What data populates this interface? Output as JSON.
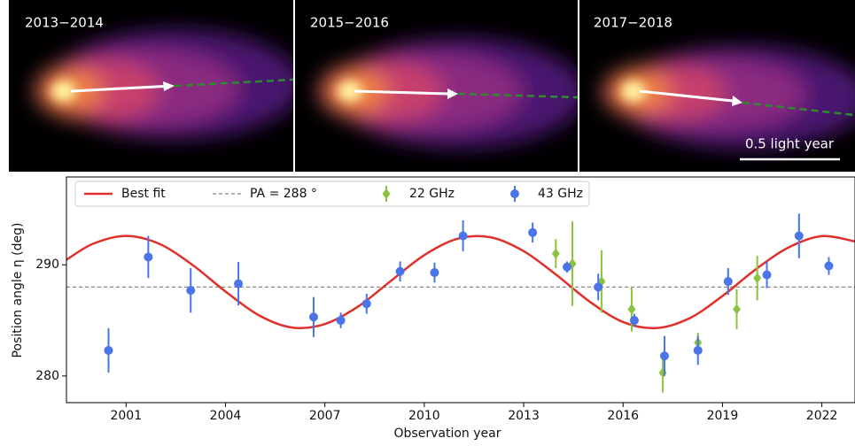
{
  "panels": [
    {
      "label": "2013−2014"
    },
    {
      "label": "2015−2016"
    },
    {
      "label": "2017−2018"
    }
  ],
  "scale_bar": "0.5 light year",
  "chart_data": {
    "type": "scatter",
    "xlabel": "Observation year",
    "ylabel": "Position angle η (deg)",
    "xlim": [
      1999.2,
      2023.0
    ],
    "ylim": [
      277.6,
      297.9
    ],
    "xticks": [
      2001,
      2004,
      2007,
      2010,
      2013,
      2016,
      2019,
      2022
    ],
    "yticks": [
      280,
      290
    ],
    "legend": "upper left",
    "reference_line": {
      "value": 288,
      "label": "PA = 288 °",
      "color": "#888888"
    },
    "series": [
      {
        "name": "Best fit",
        "type": "line",
        "color": "#e0302a",
        "x": [
          1999.2,
          2000,
          2001,
          2002,
          2003,
          2004,
          2005,
          2006,
          2007,
          2008,
          2009,
          2010,
          2011,
          2012,
          2013,
          2014,
          2015,
          2016,
          2017,
          2018,
          2019,
          2020,
          2021,
          2022,
          2023
        ],
        "values": [
          290.45,
          291.89,
          292.6,
          291.89,
          290.0,
          287.6,
          285.47,
          284.36,
          284.67,
          286.24,
          288.57,
          290.87,
          292.34,
          292.48,
          291.23,
          289.06,
          286.67,
          284.85,
          284.31,
          285.18,
          287.19,
          289.58,
          291.57,
          292.58,
          292.1
        ]
      },
      {
        "name": "22 GHz",
        "type": "errorbar",
        "marker": "diamond",
        "color": "#8ac43f",
        "x": [
          2013.97,
          2014.47,
          2015.35,
          2016.26,
          2017.2,
          2018.26,
          2019.43,
          2020.05
        ],
        "values": [
          291.0,
          290.1,
          288.5,
          286.0,
          280.3,
          283.0,
          286.0,
          288.8
        ],
        "errors": [
          1.3,
          3.8,
          2.8,
          2.0,
          1.8,
          0.9,
          1.8,
          2.0
        ]
      },
      {
        "name": "43 GHz",
        "type": "errorbar",
        "marker": "circle",
        "color": "#4a74e8",
        "x": [
          2000.47,
          2001.67,
          2002.95,
          2004.39,
          2006.66,
          2007.48,
          2008.26,
          2009.27,
          2010.31,
          2011.17,
          2013.27,
          2014.31,
          2015.25,
          2016.34,
          2017.25,
          2018.26,
          2019.17,
          2020.34,
          2021.31,
          2022.21
        ],
        "values": [
          282.3,
          290.7,
          287.7,
          288.3,
          285.3,
          285.0,
          286.5,
          289.4,
          289.3,
          292.6,
          292.9,
          289.8,
          288.0,
          285.0,
          281.8,
          282.3,
          288.5,
          289.1,
          292.6,
          289.9
        ],
        "errors": [
          2.0,
          1.9,
          2.0,
          1.95,
          1.8,
          0.7,
          0.9,
          0.9,
          0.9,
          1.4,
          0.9,
          0.5,
          1.2,
          0.6,
          1.8,
          1.3,
          1.2,
          1.2,
          2.0,
          0.8
        ]
      }
    ]
  }
}
